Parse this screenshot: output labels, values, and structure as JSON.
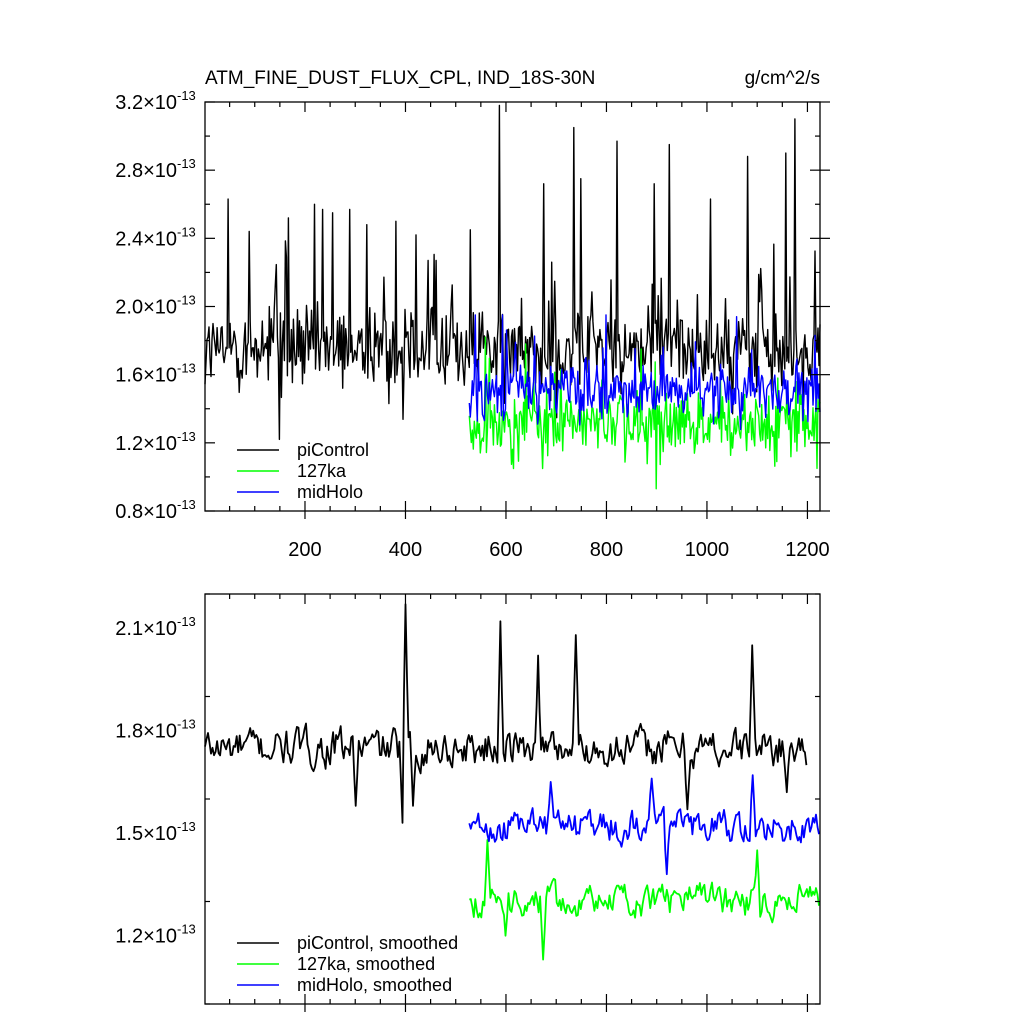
{
  "chart_data": [
    {
      "type": "line",
      "title": "ATM_FINE_DUST_FLUX_CPL, IND_18S-30N",
      "units": "g/cm^2/s",
      "xlim": [
        1,
        1225
      ],
      "ylim": [
        8e-14,
        3.2e-13
      ],
      "xticks": [
        200,
        400,
        600,
        800,
        1000,
        1200
      ],
      "xtick_labels": [
        "200",
        "400",
        "600",
        "800",
        "1000",
        "1200"
      ],
      "yticks": [
        8e-14,
        1.2e-13,
        1.6e-13,
        2e-13,
        2.4e-13,
        2.8e-13,
        3.2e-13
      ],
      "ytick_mantissas": [
        "0.8",
        "1.2",
        "1.6",
        "2.0",
        "2.4",
        "2.8",
        "3.2"
      ],
      "ytick_exponent": "-13",
      "legend_placement": "bottom-left",
      "series": [
        {
          "name": "piControl",
          "color": "#000000",
          "x_range": [
            1,
            1225
          ],
          "mean": 1.75e-13,
          "noise": 1.4e-14,
          "spikes": [
            [
              48,
              2.63e-13
            ],
            [
              90,
              2.44e-13
            ],
            [
              150,
              1.22e-13
            ],
            [
              168,
              2.52e-13
            ],
            [
              220,
              2.6e-13
            ],
            [
              235,
              2.57e-13
            ],
            [
              255,
              2.55e-13
            ],
            [
              290,
              2.57e-13
            ],
            [
              323,
              2.48e-13
            ],
            [
              382,
              2.5e-13
            ],
            [
              422,
              2.42e-13
            ],
            [
              445,
              2.27e-13
            ],
            [
              462,
              2.27e-13
            ],
            [
              530,
              2.45e-13
            ],
            [
              588,
              3.18e-13
            ],
            [
              675,
              2.72e-13
            ],
            [
              736,
              3.05e-13
            ],
            [
              750,
              2.75e-13
            ],
            [
              822,
              2.97e-13
            ],
            [
              895,
              2.72e-13
            ],
            [
              925,
              2.95e-13
            ],
            [
              1008,
              2.63e-13
            ],
            [
              1082,
              2.88e-13
            ],
            [
              1158,
              2.9e-13
            ],
            [
              1175,
              3.1e-13
            ]
          ]
        },
        {
          "name": "127ka",
          "color": "#00ff00",
          "x_range": [
            527,
            1225
          ],
          "mean": 1.3e-13,
          "noise": 1.1e-14,
          "spikes": [
            [
              560,
              1.82e-13
            ],
            [
              640,
              1.78e-13
            ],
            [
              870,
              1.75e-13
            ],
            [
              900,
              9.3e-14
            ],
            [
              1220,
              1.05e-13
            ]
          ]
        },
        {
          "name": "midHolo",
          "color": "#0000ff",
          "x_range": [
            527,
            1225
          ],
          "mean": 1.5e-13,
          "noise": 1e-14,
          "spikes": [
            [
              540,
              1.95e-13
            ],
            [
              594,
              1.95e-13
            ],
            [
              800,
              1.95e-13
            ],
            [
              1060,
              1.94e-13
            ],
            [
              1215,
              1.83e-13
            ]
          ]
        }
      ]
    },
    {
      "type": "line",
      "xlim": [
        1,
        1225
      ],
      "ylim": [
        1e-13,
        2.2e-13
      ],
      "yticks": [
        1.2e-13,
        1.5e-13,
        1.8e-13,
        2.1e-13
      ],
      "ytick_mantissas": [
        "1.2",
        "1.5",
        "1.8",
        "2.1"
      ],
      "ytick_exponent": "-13",
      "legend_placement": "bottom-left",
      "series": [
        {
          "name": "piControl, smoothed",
          "color": "#000000",
          "x_range": [
            1,
            1200
          ],
          "mean": 1.75e-13,
          "noise": 7e-15,
          "spikes": [
            [
              300,
              1.58e-13
            ],
            [
              395,
              1.53e-13
            ],
            [
              400,
              2.17e-13
            ],
            [
              415,
              1.58e-13
            ],
            [
              590,
              2.12e-13
            ],
            [
              665,
              2.02e-13
            ],
            [
              740,
              2.08e-13
            ],
            [
              960,
              1.57e-13
            ],
            [
              1090,
              2.05e-13
            ],
            [
              1160,
              1.62e-13
            ]
          ]
        },
        {
          "name": "127ka, smoothed",
          "color": "#00ff00",
          "x_range": [
            527,
            1225
          ],
          "mean": 1.3e-13,
          "noise": 6e-15,
          "spikes": [
            [
              562,
              1.48e-13
            ],
            [
              598,
              1.2e-13
            ],
            [
              673,
              1.13e-13
            ],
            [
              1100,
              1.45e-13
            ]
          ]
        },
        {
          "name": "midHolo, smoothed",
          "color": "#0000ff",
          "x_range": [
            527,
            1225
          ],
          "mean": 1.52e-13,
          "noise": 6e-15,
          "spikes": [
            [
              690,
              1.65e-13
            ],
            [
              890,
              1.66e-13
            ],
            [
              1090,
              1.67e-13
            ],
            [
              920,
              1.38e-13
            ]
          ]
        }
      ]
    }
  ]
}
